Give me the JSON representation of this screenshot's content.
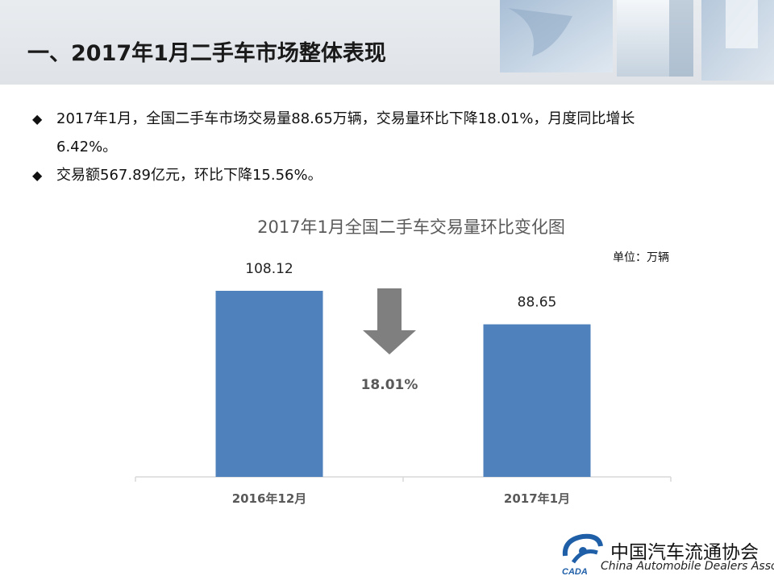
{
  "slide": {
    "title": "一、2017年1月二手车市场整体表现",
    "bullets": [
      {
        "line1": "2017年1月，全国二手车市场交易量88.65万辆，交易量环比下降18.01%，月度同比增长",
        "line2": "6.42%。"
      },
      {
        "line1": "交易额567.89亿元，环比下降15.56%。",
        "line2": ""
      }
    ]
  },
  "chart_data": {
    "type": "bar",
    "title": "2017年1月全国二手车交易量环比变化图",
    "unit_label": "单位：万辆",
    "categories": [
      "2016年12月",
      "2017年1月"
    ],
    "values": [
      108.12,
      88.65
    ],
    "value_labels": [
      "108.12",
      "88.65"
    ],
    "ylim": [
      0,
      120
    ],
    "grid": false,
    "annotation": {
      "type": "down-arrow",
      "text": "18.01%"
    },
    "colors": {
      "bar": "#4f81bd",
      "arrow": "#7f7f7f",
      "axis": "#d9d9d9",
      "text": "#595959"
    }
  },
  "footer": {
    "org_cn": "中国汽车流通协会",
    "org_en": "China Automobile Dealers Association",
    "logo_text": "CADA"
  }
}
